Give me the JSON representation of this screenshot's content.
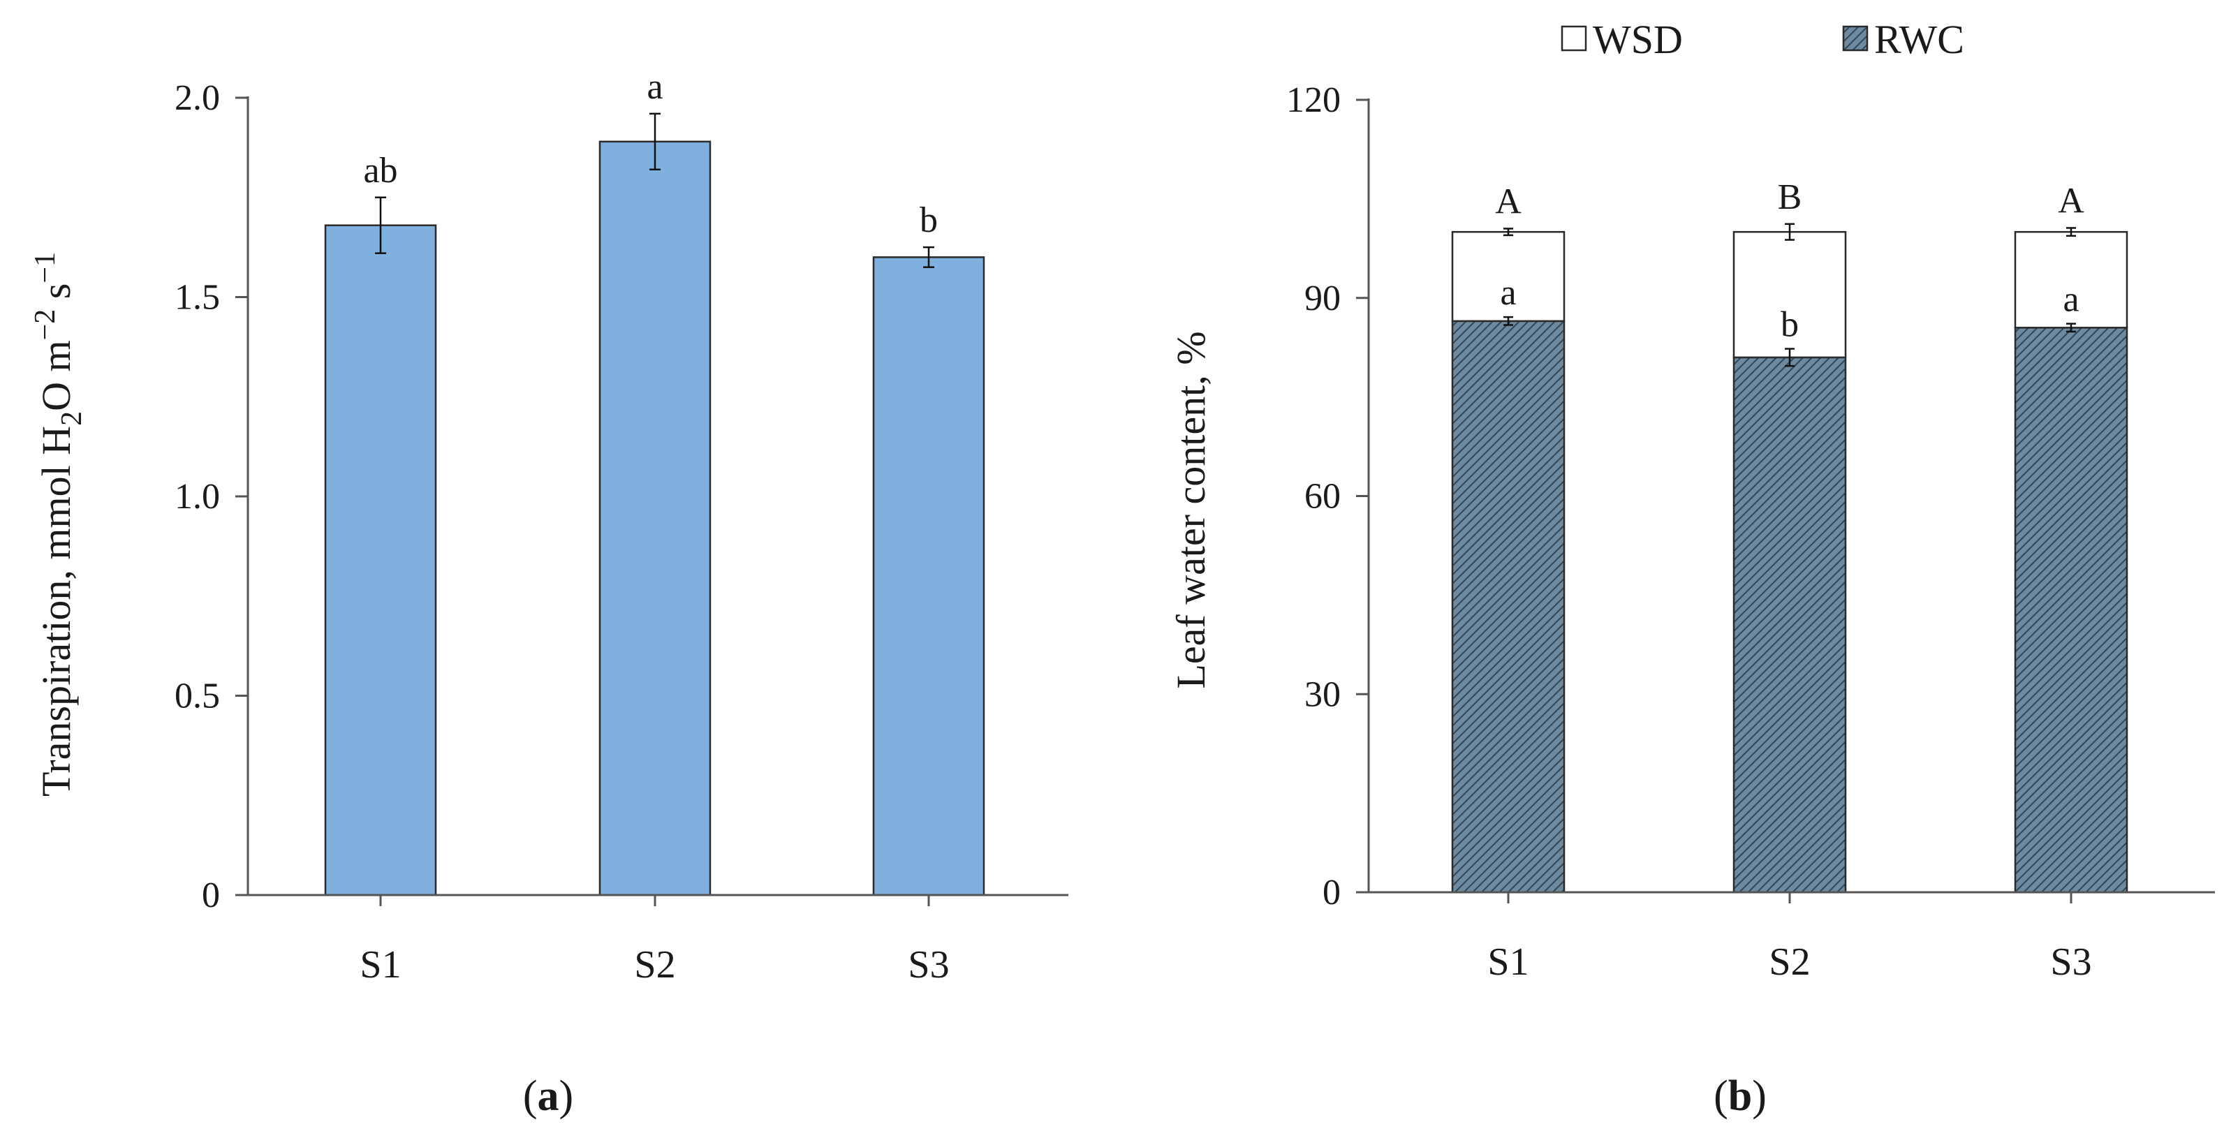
{
  "colors": {
    "bar_blue": "#7fb0de",
    "bar_outline": "#2a2a2a",
    "rwc_fill": "#6e8aa0",
    "rwc_hatch": "#2f4656",
    "wsd_fill": "#ffffff",
    "axis": "#555555"
  },
  "chart_data": [
    {
      "type": "bar",
      "panel": "(a)",
      "panel_letter": "a",
      "categories": [
        "S1",
        "S2",
        "S3"
      ],
      "values": [
        1.68,
        1.89,
        1.6
      ],
      "errors": [
        0.07,
        0.07,
        0.025
      ],
      "significance": [
        "ab",
        "a",
        "b"
      ],
      "ylabel_parts": {
        "pre": "Transpiration, mmol H",
        "sub": "2",
        "mid": "O m",
        "sup1": "−2",
        "s": " s",
        "sup2": "−1"
      },
      "ylim": [
        0,
        2.0
      ],
      "yticks": [
        "0",
        "0.5",
        "1.0",
        "1.5",
        "2.0"
      ],
      "ytick_values": [
        0,
        0.5,
        1.0,
        1.5,
        2.0
      ],
      "grid": false
    },
    {
      "type": "bar",
      "stacked": true,
      "panel": "(b)",
      "panel_letter": "b",
      "categories": [
        "S1",
        "S2",
        "S3"
      ],
      "series": [
        {
          "name": "RWC",
          "values": [
            86.5,
            81.0,
            85.5
          ],
          "errors": [
            0.6,
            1.3,
            0.6
          ],
          "significance": [
            "a",
            "b",
            "a"
          ]
        },
        {
          "name": "WSD",
          "values": [
            13.5,
            19.0,
            14.5
          ],
          "errors": [
            0.5,
            1.2,
            0.6
          ],
          "significance": [
            "A",
            "B",
            "A"
          ]
        }
      ],
      "legend": [
        "WSD",
        "RWC"
      ],
      "legend_position": "top",
      "ylabel": "Leaf water content, %",
      "ylim": [
        0,
        120
      ],
      "yticks": [
        "0",
        "30",
        "60",
        "90",
        "120"
      ],
      "ytick_values": [
        0,
        30,
        60,
        90,
        120
      ],
      "grid": false
    }
  ]
}
